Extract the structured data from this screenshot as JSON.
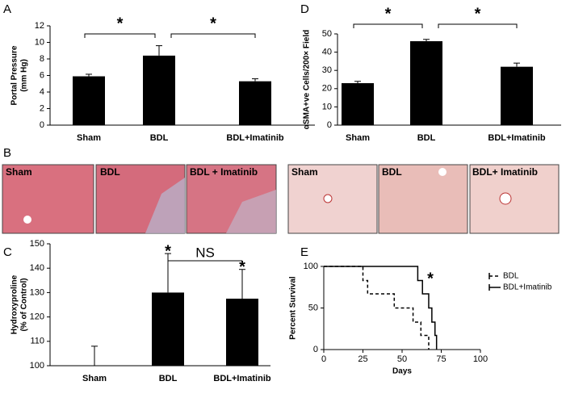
{
  "chart_data": [
    {
      "type": "bar",
      "panel": "A",
      "ylabel": [
        "Portal Pressure",
        "(mm Hg)"
      ],
      "categories": [
        "Sham",
        "BDL",
        "BDL+Imatinib"
      ],
      "values": [
        5.9,
        8.4,
        5.3
      ],
      "errors": [
        0.25,
        1.2,
        0.3
      ],
      "color": "#000000",
      "ylim": [
        0,
        12
      ],
      "yticks": [
        0,
        2,
        4,
        6,
        8,
        10,
        12
      ],
      "annotations": [
        {
          "text": "*",
          "between": [
            0,
            1
          ]
        },
        {
          "text": "*",
          "between": [
            1,
            2
          ]
        }
      ]
    },
    {
      "type": "bar",
      "panel": "C",
      "ylabel": [
        "Hydroxyproline",
        "(% of Control)"
      ],
      "categories": [
        "Sham",
        "BDL",
        "BDL+Imatinib"
      ],
      "values": [
        100,
        130,
        127.5
      ],
      "errors": [
        8,
        16,
        12
      ],
      "color": "#000000",
      "ylim": [
        100,
        150
      ],
      "yticks": [
        100,
        110,
        120,
        130,
        140,
        150
      ],
      "annotations": [
        {
          "text": "NS",
          "between": [
            1,
            2
          ]
        },
        {
          "text": "*",
          "over": 1
        },
        {
          "text": "*",
          "over": 2
        }
      ]
    },
    {
      "type": "bar",
      "panel": "D",
      "ylabel": [
        "αSMA+ve Cells/200× Field"
      ],
      "categories": [
        "Sham",
        "BDL",
        "BDL+Imatinib"
      ],
      "values": [
        23,
        46,
        32
      ],
      "errors": [
        1,
        1,
        2
      ],
      "color": "#000000",
      "ylim": [
        0,
        50
      ],
      "yticks": [
        0,
        10,
        20,
        30,
        40,
        50
      ],
      "annotations": [
        {
          "text": "*",
          "between": [
            0,
            1
          ]
        },
        {
          "text": "*",
          "between": [
            1,
            2
          ]
        }
      ]
    },
    {
      "type": "line",
      "panel": "E",
      "xlabel": "Days",
      "ylabel": [
        "Percent Survival"
      ],
      "step": "post",
      "xlim": [
        0,
        100
      ],
      "xticks": [
        0,
        25,
        50,
        75,
        100
      ],
      "ylim": [
        0,
        100
      ],
      "yticks": [
        0,
        50,
        100
      ],
      "series": [
        {
          "name": "BDL",
          "color": "#000000",
          "dash": true,
          "x": [
            0,
            25,
            28,
            45,
            57,
            62,
            67
          ],
          "values": [
            100,
            83,
            67,
            50,
            33,
            17,
            0
          ]
        },
        {
          "name": "BDL+Imatinib",
          "color": "#000000",
          "dash": false,
          "x": [
            0,
            60,
            63,
            67,
            69,
            71,
            72
          ],
          "values": [
            100,
            83,
            67,
            50,
            33,
            17,
            0
          ]
        }
      ],
      "annotations": [
        {
          "text": "*"
        }
      ]
    }
  ],
  "histology": {
    "panel": "B",
    "left": [
      "Sham",
      "BDL",
      "BDL + Imatinib"
    ],
    "right": [
      "Sham",
      "BDL",
      "BDL+ Imatinib"
    ]
  }
}
